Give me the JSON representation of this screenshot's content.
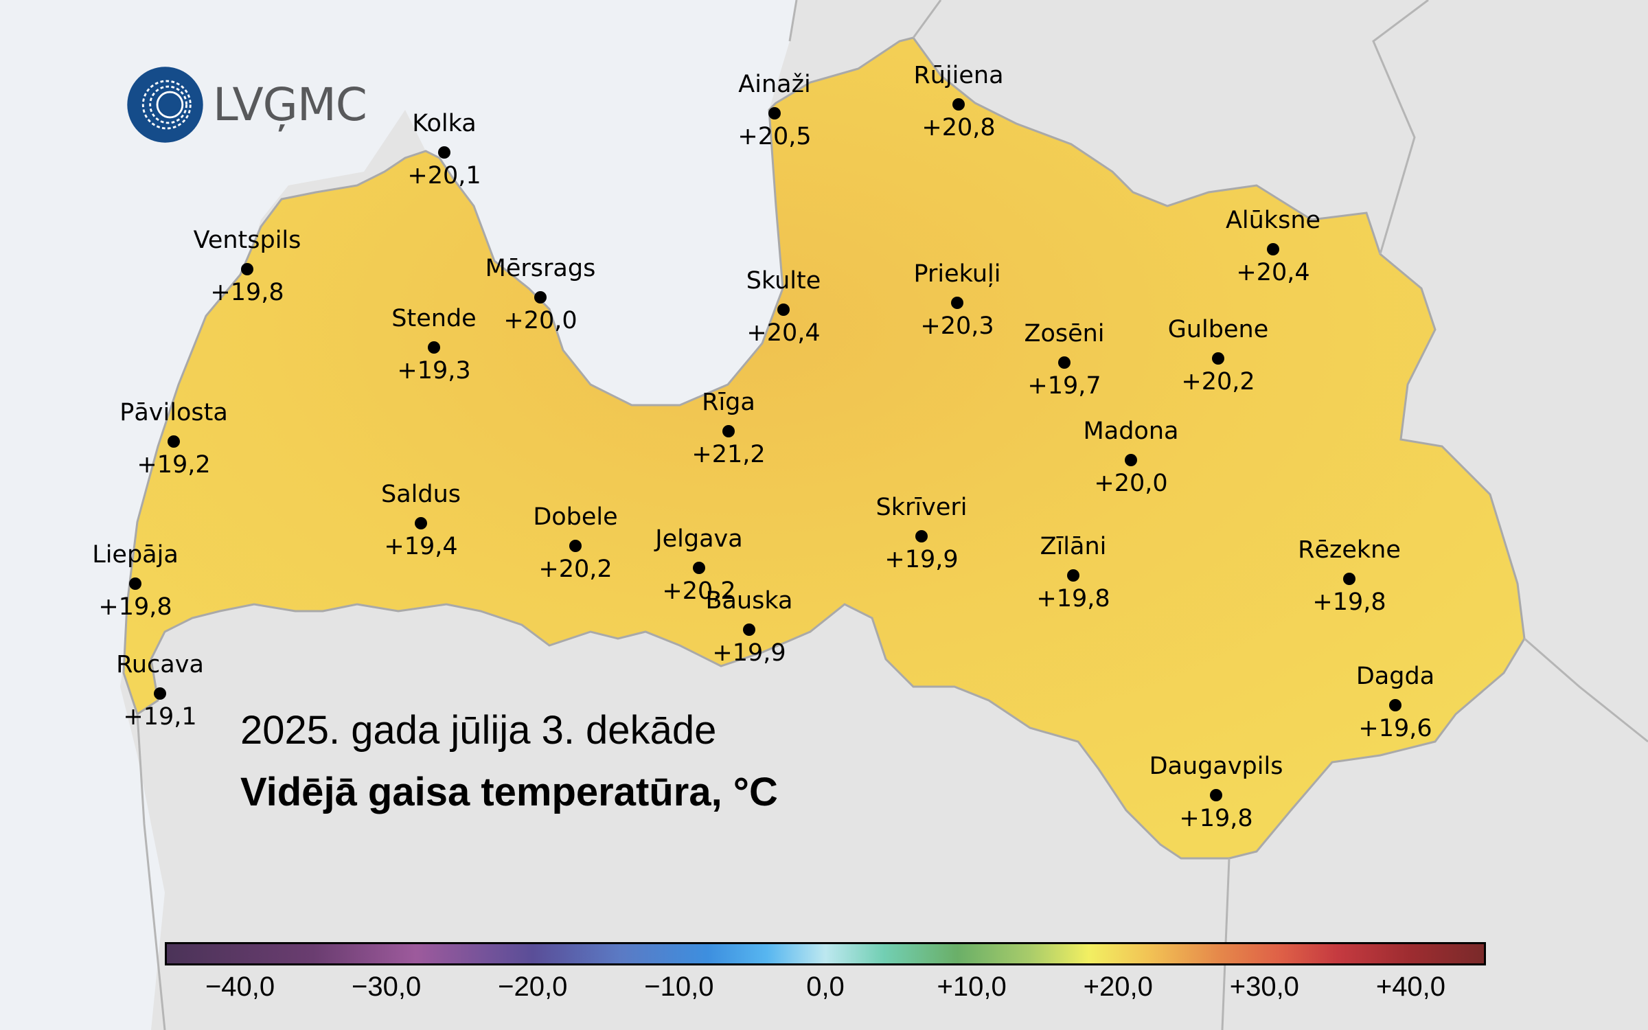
{
  "logo": {
    "text": "LVĢMC"
  },
  "title": {
    "line1": "2025. gada jūlija 3. dekāde",
    "line2": "Vidējā gaisa temperatūra, °C"
  },
  "colors": {
    "sea": "#eef1f5",
    "land_outside": "#e4e4e4",
    "latvia_fill": "#f3ce55",
    "border": "#a9a9a9",
    "logo_blue": "#154c8a",
    "logo_text": "#58595b"
  },
  "stations": [
    {
      "name": "Kolka",
      "value": "+20,1"
    },
    {
      "name": "Ventspils",
      "value": "+19,8"
    },
    {
      "name": "Mērsrags",
      "value": "+20,0"
    },
    {
      "name": "Stende",
      "value": "+19,3"
    },
    {
      "name": "Pāvilosta",
      "value": "+19,2"
    },
    {
      "name": "Saldus",
      "value": "+19,4"
    },
    {
      "name": "Dobele",
      "value": "+20,2"
    },
    {
      "name": "Liepāja",
      "value": "+19,8"
    },
    {
      "name": "Rucava",
      "value": "+19,1"
    },
    {
      "name": "Ainaži",
      "value": "+20,5"
    },
    {
      "name": "Rūjiena",
      "value": "+20,8"
    },
    {
      "name": "Skulte",
      "value": "+20,4"
    },
    {
      "name": "Priekuļi",
      "value": "+20,3"
    },
    {
      "name": "Rīga",
      "value": "+21,2"
    },
    {
      "name": "Jelgava",
      "value": "+20,2"
    },
    {
      "name": "Bauska",
      "value": "+19,9"
    },
    {
      "name": "Skrīveri",
      "value": "+19,9"
    },
    {
      "name": "Alūksne",
      "value": "+20,4"
    },
    {
      "name": "Zosēni",
      "value": "+19,7"
    },
    {
      "name": "Gulbene",
      "value": "+20,2"
    },
    {
      "name": "Madona",
      "value": "+20,0"
    },
    {
      "name": "Zīlāni",
      "value": "+19,8"
    },
    {
      "name": "Rēzekne",
      "value": "+19,8"
    },
    {
      "name": "Dagda",
      "value": "+19,6"
    },
    {
      "name": "Daugavpils",
      "value": "+19,8"
    }
  ],
  "legend": {
    "ticks": [
      "−40,0",
      "−30,0",
      "−20,0",
      "−10,0",
      "0,0",
      "+10,0",
      "+20,0",
      "+30,0",
      "+40,0"
    ],
    "range": [
      -45,
      45
    ],
    "gradient_stops": [
      {
        "value": -45,
        "color": "#4b3358"
      },
      {
        "value": -35,
        "color": "#6a3d70"
      },
      {
        "value": -28,
        "color": "#9d5a9c"
      },
      {
        "value": -20,
        "color": "#5a4e98"
      },
      {
        "value": -14,
        "color": "#5b7ac4"
      },
      {
        "value": -8,
        "color": "#3d8fdf"
      },
      {
        "value": -4,
        "color": "#57b6f0"
      },
      {
        "value": 0,
        "color": "#bde8f0"
      },
      {
        "value": 4,
        "color": "#72cfb3"
      },
      {
        "value": 9,
        "color": "#6aaf68"
      },
      {
        "value": 14,
        "color": "#a9cc6a"
      },
      {
        "value": 18,
        "color": "#f2ef62"
      },
      {
        "value": 22,
        "color": "#f2c455"
      },
      {
        "value": 27,
        "color": "#e5874a"
      },
      {
        "value": 31,
        "color": "#df6147"
      },
      {
        "value": 35,
        "color": "#c53a40"
      },
      {
        "value": 40,
        "color": "#9d2c30"
      },
      {
        "value": 45,
        "color": "#7a2a2a"
      }
    ]
  }
}
